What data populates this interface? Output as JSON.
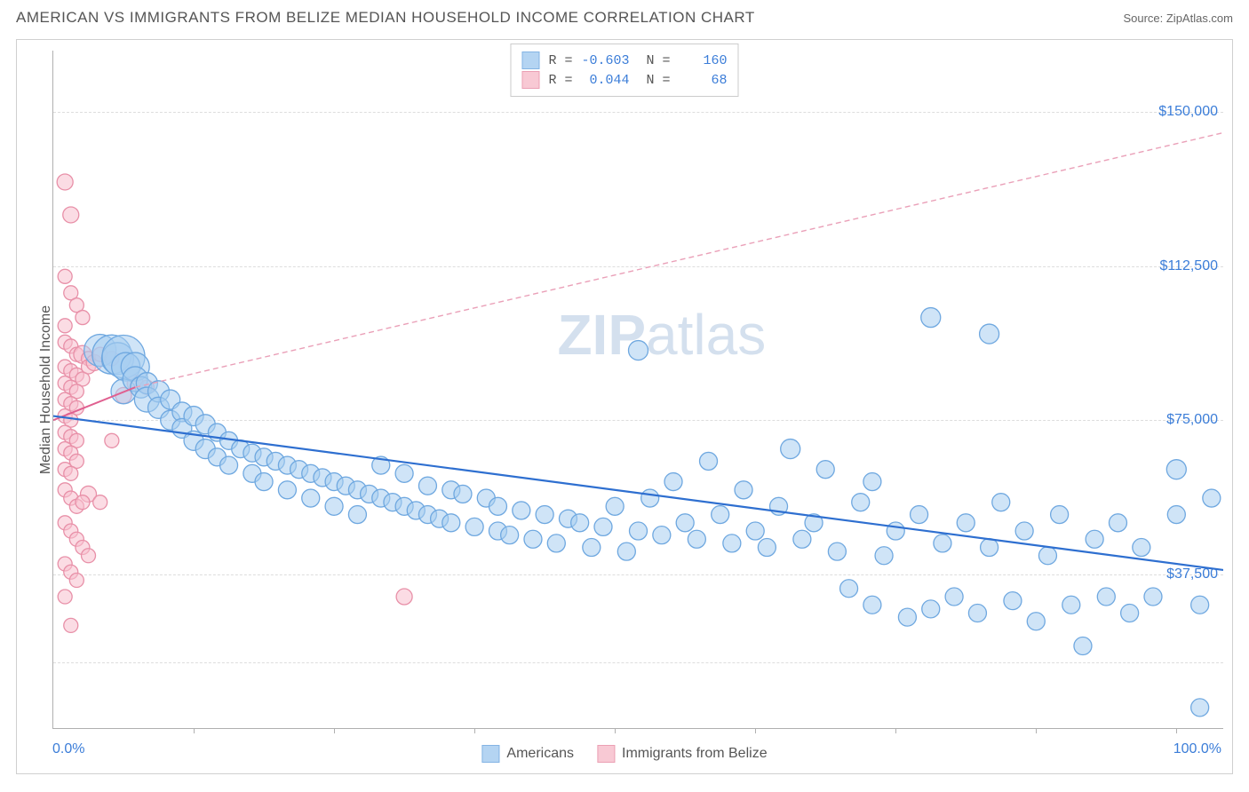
{
  "header": {
    "title": "AMERICAN VS IMMIGRANTS FROM BELIZE MEDIAN HOUSEHOLD INCOME CORRELATION CHART",
    "source_prefix": "Source: ",
    "source_name": "ZipAtlas.com"
  },
  "watermark": {
    "part1": "ZIP",
    "part2": "atlas"
  },
  "chart": {
    "type": "scatter",
    "background_color": "#ffffff",
    "grid_color": "#dddddd",
    "axis_color": "#b0b0b0",
    "font_color_axis": "#3b7dd8",
    "y_axis_title": "Median Household Income",
    "xlim": [
      0,
      100
    ],
    "ylim": [
      0,
      165000
    ],
    "y_ticks": [
      {
        "v": 37500,
        "label": "$37,500"
      },
      {
        "v": 75000,
        "label": "$75,000"
      },
      {
        "v": 112500,
        "label": "$112,500"
      },
      {
        "v": 150000,
        "label": "$150,000"
      }
    ],
    "y_grid_extra": [
      16000
    ],
    "x_tick_positions": [
      12,
      24,
      36,
      48,
      60,
      72,
      84,
      96
    ],
    "x_label_min": "0.0%",
    "x_label_max": "100.0%",
    "series": {
      "americans": {
        "label": "Americans",
        "fill": "#a8cdf0",
        "stroke": "#6fa8e0",
        "fill_opacity": 0.55,
        "trend": {
          "x1": 0,
          "y1": 76000,
          "x2": 100,
          "y2": 38500,
          "stroke": "#2e6fd0",
          "width": 2.2
        },
        "R": "-0.603",
        "N": "160",
        "points": [
          [
            4,
            92000,
            18
          ],
          [
            5,
            91000,
            22
          ],
          [
            5.5,
            90000,
            18
          ],
          [
            6,
            90500,
            24
          ],
          [
            6.2,
            88000,
            16
          ],
          [
            7,
            88000,
            16
          ],
          [
            6,
            82000,
            14
          ],
          [
            7,
            85000,
            14
          ],
          [
            7.5,
            83000,
            12
          ],
          [
            8,
            84000,
            12
          ],
          [
            8,
            80000,
            14
          ],
          [
            9,
            82000,
            12
          ],
          [
            9,
            78000,
            12
          ],
          [
            10,
            80000,
            11
          ],
          [
            10,
            75000,
            11
          ],
          [
            11,
            77000,
            11
          ],
          [
            11,
            73000,
            11
          ],
          [
            12,
            76000,
            11
          ],
          [
            12,
            70000,
            11
          ],
          [
            13,
            74000,
            11
          ],
          [
            13,
            68000,
            11
          ],
          [
            14,
            72000,
            10
          ],
          [
            14,
            66000,
            10
          ],
          [
            15,
            70000,
            10
          ],
          [
            15,
            64000,
            10
          ],
          [
            16,
            68000,
            10
          ],
          [
            17,
            67000,
            10
          ],
          [
            17,
            62000,
            10
          ],
          [
            18,
            66000,
            10
          ],
          [
            18,
            60000,
            10
          ],
          [
            19,
            65000,
            10
          ],
          [
            20,
            64000,
            10
          ],
          [
            20,
            58000,
            10
          ],
          [
            21,
            63000,
            10
          ],
          [
            22,
            62000,
            10
          ],
          [
            22,
            56000,
            10
          ],
          [
            23,
            61000,
            10
          ],
          [
            24,
            60000,
            10
          ],
          [
            24,
            54000,
            10
          ],
          [
            25,
            59000,
            10
          ],
          [
            26,
            58000,
            10
          ],
          [
            26,
            52000,
            10
          ],
          [
            27,
            57000,
            10
          ],
          [
            28,
            64000,
            10
          ],
          [
            28,
            56000,
            10
          ],
          [
            29,
            55000,
            10
          ],
          [
            30,
            54000,
            10
          ],
          [
            30,
            62000,
            10
          ],
          [
            31,
            53000,
            10
          ],
          [
            32,
            59000,
            10
          ],
          [
            32,
            52000,
            10
          ],
          [
            33,
            51000,
            10
          ],
          [
            34,
            58000,
            10
          ],
          [
            34,
            50000,
            10
          ],
          [
            35,
            57000,
            10
          ],
          [
            36,
            49000,
            10
          ],
          [
            37,
            56000,
            10
          ],
          [
            38,
            48000,
            10
          ],
          [
            38,
            54000,
            10
          ],
          [
            39,
            47000,
            10
          ],
          [
            40,
            53000,
            10
          ],
          [
            41,
            46000,
            10
          ],
          [
            42,
            52000,
            10
          ],
          [
            43,
            45000,
            10
          ],
          [
            44,
            51000,
            10
          ],
          [
            45,
            50000,
            10
          ],
          [
            46,
            44000,
            10
          ],
          [
            47,
            49000,
            10
          ],
          [
            48,
            54000,
            10
          ],
          [
            49,
            43000,
            10
          ],
          [
            50,
            48000,
            10
          ],
          [
            50,
            92000,
            11
          ],
          [
            51,
            56000,
            10
          ],
          [
            52,
            47000,
            10
          ],
          [
            53,
            60000,
            10
          ],
          [
            54,
            50000,
            10
          ],
          [
            55,
            46000,
            10
          ],
          [
            56,
            65000,
            10
          ],
          [
            57,
            52000,
            10
          ],
          [
            58,
            45000,
            10
          ],
          [
            59,
            58000,
            10
          ],
          [
            60,
            48000,
            10
          ],
          [
            61,
            44000,
            10
          ],
          [
            62,
            54000,
            10
          ],
          [
            63,
            68000,
            11
          ],
          [
            64,
            46000,
            10
          ],
          [
            65,
            50000,
            10
          ],
          [
            66,
            63000,
            10
          ],
          [
            67,
            43000,
            10
          ],
          [
            68,
            34000,
            10
          ],
          [
            69,
            55000,
            10
          ],
          [
            70,
            30000,
            10
          ],
          [
            70,
            60000,
            10
          ],
          [
            71,
            42000,
            10
          ],
          [
            72,
            48000,
            10
          ],
          [
            73,
            27000,
            10
          ],
          [
            74,
            52000,
            10
          ],
          [
            75,
            29000,
            10
          ],
          [
            75,
            100000,
            11
          ],
          [
            76,
            45000,
            10
          ],
          [
            77,
            32000,
            10
          ],
          [
            78,
            50000,
            10
          ],
          [
            79,
            28000,
            10
          ],
          [
            80,
            44000,
            10
          ],
          [
            80,
            96000,
            11
          ],
          [
            81,
            55000,
            10
          ],
          [
            82,
            31000,
            10
          ],
          [
            83,
            48000,
            10
          ],
          [
            84,
            26000,
            10
          ],
          [
            85,
            42000,
            10
          ],
          [
            86,
            52000,
            10
          ],
          [
            87,
            30000,
            10
          ],
          [
            88,
            20000,
            10
          ],
          [
            89,
            46000,
            10
          ],
          [
            90,
            32000,
            10
          ],
          [
            91,
            50000,
            10
          ],
          [
            92,
            28000,
            10
          ],
          [
            93,
            44000,
            10
          ],
          [
            94,
            32000,
            10
          ],
          [
            96,
            63000,
            11
          ],
          [
            96,
            52000,
            10
          ],
          [
            98,
            5000,
            10
          ],
          [
            98,
            30000,
            10
          ],
          [
            99,
            56000,
            10
          ]
        ]
      },
      "belize": {
        "label": "Immigrants from Belize",
        "fill": "#f7c0cd",
        "stroke": "#e890a8",
        "fill_opacity": 0.55,
        "trend_solid": {
          "x1": 0,
          "y1": 75000,
          "x2": 7,
          "y2": 83000,
          "stroke": "#e06090",
          "width": 2
        },
        "trend_dash": {
          "x1": 7,
          "y1": 83000,
          "x2": 100,
          "y2": 145000,
          "stroke": "#eaa0b8",
          "width": 1.4,
          "dash": "6,4"
        },
        "R": "0.044",
        "N": "68",
        "points": [
          [
            1,
            133000,
            9
          ],
          [
            1.5,
            125000,
            9
          ],
          [
            1,
            110000,
            8
          ],
          [
            1.5,
            106000,
            8
          ],
          [
            2,
            103000,
            8
          ],
          [
            2.5,
            100000,
            8
          ],
          [
            1,
            98000,
            8
          ],
          [
            1,
            94000,
            8
          ],
          [
            1.5,
            93000,
            8
          ],
          [
            2,
            91000,
            8
          ],
          [
            2.5,
            91000,
            10
          ],
          [
            3,
            90000,
            8
          ],
          [
            1,
            88000,
            8
          ],
          [
            1.5,
            87000,
            8
          ],
          [
            2,
            86000,
            8
          ],
          [
            2.5,
            85000,
            8
          ],
          [
            3,
            88000,
            8
          ],
          [
            3.5,
            89000,
            9
          ],
          [
            4,
            91000,
            8
          ],
          [
            5,
            90000,
            8
          ],
          [
            1,
            84000,
            8
          ],
          [
            1.5,
            83000,
            8
          ],
          [
            2,
            82000,
            8
          ],
          [
            1,
            80000,
            8
          ],
          [
            1.5,
            79000,
            8
          ],
          [
            2,
            78000,
            8
          ],
          [
            1,
            76000,
            8
          ],
          [
            1.5,
            75000,
            8
          ],
          [
            1,
            72000,
            8
          ],
          [
            1.5,
            71000,
            8
          ],
          [
            2,
            70000,
            8
          ],
          [
            1,
            68000,
            8
          ],
          [
            1.5,
            67000,
            8
          ],
          [
            2,
            65000,
            8
          ],
          [
            1,
            63000,
            8
          ],
          [
            1.5,
            62000,
            8
          ],
          [
            1,
            58000,
            8
          ],
          [
            1.5,
            56000,
            8
          ],
          [
            2,
            54000,
            8
          ],
          [
            3,
            57000,
            9
          ],
          [
            4,
            55000,
            8
          ],
          [
            1,
            50000,
            8
          ],
          [
            1.5,
            48000,
            8
          ],
          [
            2,
            46000,
            8
          ],
          [
            2.5,
            44000,
            8
          ],
          [
            3,
            42000,
            8
          ],
          [
            1,
            40000,
            8
          ],
          [
            1.5,
            38000,
            8
          ],
          [
            2,
            36000,
            8
          ],
          [
            2.5,
            55000,
            8
          ],
          [
            1,
            32000,
            8
          ],
          [
            1.5,
            25000,
            8
          ],
          [
            30,
            32000,
            9
          ],
          [
            5,
            70000,
            8
          ],
          [
            6,
            81000,
            9
          ],
          [
            7,
            84000,
            9
          ],
          [
            8,
            83000,
            8
          ]
        ]
      }
    }
  }
}
